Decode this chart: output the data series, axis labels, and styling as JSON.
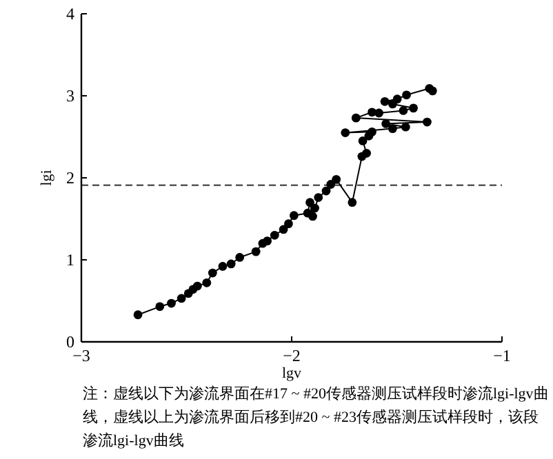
{
  "chart_data": {
    "type": "line",
    "xlabel": "lgv",
    "ylabel": "lgi",
    "xlim": [
      -3,
      -1
    ],
    "ylim": [
      0,
      4
    ],
    "xticks": [
      {
        "value": -3,
        "label": "−3"
      },
      {
        "value": -2,
        "label": "−2"
      },
      {
        "value": -1,
        "label": "−1"
      }
    ],
    "yticks": [
      0,
      1,
      2,
      3,
      4
    ],
    "marker": "circle",
    "line_style": "solid",
    "grid": false,
    "series": [
      {
        "color": "#000000",
        "x": [
          -2.731,
          -2.627,
          -2.572,
          -2.524,
          -2.491,
          -2.469,
          -2.448,
          -2.404,
          -2.376,
          -2.328,
          -2.288,
          -2.247,
          -2.17,
          -2.138,
          -2.116,
          -2.081,
          -2.039,
          -2.015,
          -1.989,
          -1.924,
          -1.913,
          -1.9,
          -1.89,
          -1.873,
          -1.836,
          -1.814,
          -1.788,
          -1.712,
          -1.666,
          -1.644,
          -1.662,
          -1.633,
          -1.618,
          -1.745,
          -1.52,
          -1.458,
          -1.552,
          -1.356,
          -1.694,
          -1.618,
          -1.585,
          -1.469,
          -1.421,
          -1.52,
          -1.557,
          -1.498,
          -1.454,
          -1.345,
          -1.33
        ],
        "values": [
          0.33,
          0.43,
          0.47,
          0.53,
          0.59,
          0.64,
          0.68,
          0.72,
          0.84,
          0.92,
          0.95,
          1.03,
          1.1,
          1.2,
          1.23,
          1.3,
          1.37,
          1.44,
          1.54,
          1.57,
          1.7,
          1.53,
          1.63,
          1.76,
          1.84,
          1.92,
          1.98,
          1.7,
          2.26,
          2.3,
          2.45,
          2.51,
          2.56,
          2.55,
          2.6,
          2.62,
          2.66,
          2.68,
          2.73,
          2.8,
          2.79,
          2.82,
          2.85,
          2.9,
          2.93,
          2.96,
          3.01,
          3.09,
          3.06
        ]
      }
    ],
    "ref_lines": [
      {
        "axis": "y",
        "value": 1.91,
        "line_style": "dashed",
        "color": "#555555"
      }
    ],
    "annotations": [
      "注：虚线以下为渗流界面在#17 ~ #20传感器测压试样段时渗流lgi-lgv曲线，虚线以上为渗流界面后移到#20 ~ #23传感器测压试样段时，该段渗流lgi-lgv曲线"
    ]
  }
}
